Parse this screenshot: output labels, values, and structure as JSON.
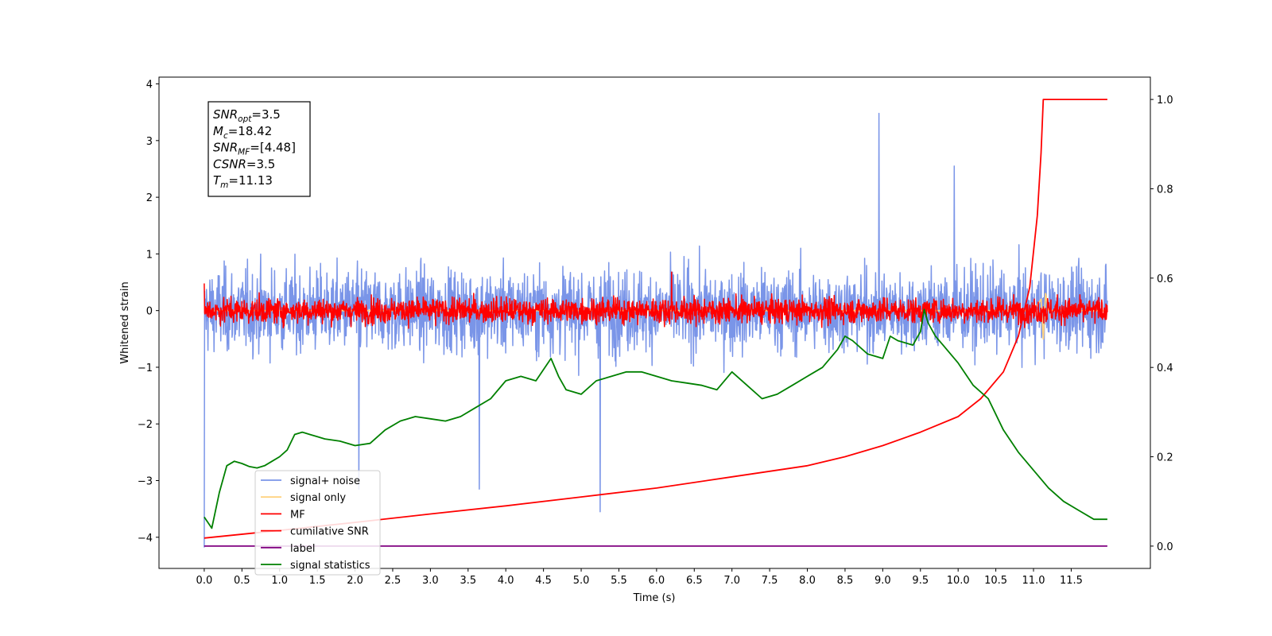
{
  "chart_data": {
    "type": "line",
    "xlabel": "Time (s)",
    "ylabel": "Whitened strain",
    "xlim": [
      -0.6,
      12.55
    ],
    "ylim": [
      -4.55,
      4.12
    ],
    "y2lim": [
      -0.05,
      1.05
    ],
    "x_ticks": [
      "0.0",
      "0.5",
      "1.0",
      "1.5",
      "2.0",
      "2.5",
      "3.0",
      "3.5",
      "4.0",
      "4.5",
      "5.0",
      "5.5",
      "6.0",
      "6.5",
      "7.0",
      "7.5",
      "8.0",
      "8.5",
      "9.0",
      "9.5",
      "10.0",
      "10.5",
      "11.0",
      "11.5"
    ],
    "y_ticks": [
      "4",
      "3",
      "2",
      "1",
      "0",
      "−1",
      "−2",
      "−3",
      "−4"
    ],
    "y2_ticks": [
      "1.0",
      "0.8",
      "0.6",
      "0.4",
      "0.2",
      "0.0"
    ],
    "grid": false,
    "legend_position": "lower-left",
    "annotation": [
      {
        "base": "SNR",
        "sub": "opt",
        "value": "=3.5"
      },
      {
        "base": "M",
        "sub": "c",
        "value": "=18.42"
      },
      {
        "base": "SNR",
        "sub": "MF",
        "value": "=[4.48]"
      },
      {
        "base": "CSNR",
        "sub": "",
        "value": "=3.5"
      },
      {
        "base": "T",
        "sub": "m",
        "value": "=11.13"
      }
    ],
    "series": [
      {
        "name": "signal+ noise",
        "color": "#7a95e8",
        "axis": "left",
        "kind": "noise",
        "x_range": [
          0.0,
          11.98
        ],
        "sigma": 0.72,
        "clip": [
          -2.95,
          2.75
        ],
        "spikes": [
          [
            5.25,
            -3.55
          ],
          [
            8.95,
            3.48
          ],
          [
            9.95,
            2.55
          ],
          [
            0.0,
            -4.18
          ],
          [
            2.05,
            -3.15
          ],
          [
            3.65,
            -3.15
          ]
        ]
      },
      {
        "name": "signal only",
        "color": "#ffd27f",
        "axis": "left",
        "x": [
          0.0,
          11.0,
          11.1,
          11.13,
          11.16,
          11.2,
          11.98
        ],
        "y": [
          0.0,
          0.0,
          0.2,
          -0.5,
          0.3,
          0.0,
          0.0
        ]
      },
      {
        "name": "MF",
        "color": "#ff0000",
        "axis": "left",
        "kind": "noise",
        "x_range": [
          0.0,
          11.98
        ],
        "sigma": 0.22,
        "clip": [
          -0.38,
          0.75
        ],
        "spikes": [
          [
            0.0,
            0.48
          ],
          [
            6.2,
            0.68
          ]
        ]
      },
      {
        "name": "cumilative SNR",
        "color": "#ff0000",
        "axis": "right",
        "x": [
          0.0,
          1.0,
          2.0,
          3.0,
          4.0,
          5.0,
          6.0,
          7.0,
          8.0,
          8.5,
          9.0,
          9.5,
          10.0,
          10.3,
          10.6,
          10.8,
          10.95,
          11.05,
          11.1,
          11.13,
          11.98
        ],
        "y": [
          0.018,
          0.035,
          0.053,
          0.072,
          0.09,
          0.11,
          0.13,
          0.155,
          0.18,
          0.2,
          0.225,
          0.255,
          0.29,
          0.33,
          0.39,
          0.47,
          0.58,
          0.74,
          0.88,
          1.0,
          1.0
        ]
      },
      {
        "name": "label",
        "color": "#800080",
        "axis": "right",
        "x": [
          0.0,
          11.98
        ],
        "y": [
          0.0,
          0.0
        ]
      },
      {
        "name": "signal statistics",
        "color": "#008000",
        "axis": "right",
        "x": [
          0.0,
          0.1,
          0.2,
          0.3,
          0.4,
          0.5,
          0.6,
          0.7,
          0.8,
          0.9,
          1.0,
          1.1,
          1.2,
          1.3,
          1.4,
          1.5,
          1.6,
          1.8,
          2.0,
          2.2,
          2.4,
          2.6,
          2.8,
          3.0,
          3.2,
          3.4,
          3.6,
          3.8,
          4.0,
          4.2,
          4.4,
          4.6,
          4.7,
          4.8,
          5.0,
          5.2,
          5.4,
          5.6,
          5.8,
          6.0,
          6.2,
          6.4,
          6.6,
          6.8,
          7.0,
          7.2,
          7.4,
          7.6,
          7.8,
          8.0,
          8.2,
          8.4,
          8.5,
          8.6,
          8.8,
          9.0,
          9.1,
          9.2,
          9.4,
          9.5,
          9.55,
          9.6,
          9.7,
          9.8,
          10.0,
          10.2,
          10.4,
          10.6,
          10.8,
          11.0,
          11.2,
          11.4,
          11.6,
          11.8,
          11.98
        ],
        "y": [
          0.065,
          0.04,
          0.12,
          0.18,
          0.19,
          0.185,
          0.178,
          0.175,
          0.18,
          0.19,
          0.2,
          0.215,
          0.25,
          0.255,
          0.25,
          0.245,
          0.24,
          0.235,
          0.225,
          0.23,
          0.26,
          0.28,
          0.29,
          0.285,
          0.28,
          0.29,
          0.31,
          0.33,
          0.37,
          0.38,
          0.37,
          0.42,
          0.38,
          0.35,
          0.34,
          0.37,
          0.38,
          0.39,
          0.39,
          0.38,
          0.37,
          0.365,
          0.36,
          0.35,
          0.39,
          0.36,
          0.33,
          0.34,
          0.36,
          0.38,
          0.4,
          0.44,
          0.47,
          0.46,
          0.43,
          0.42,
          0.47,
          0.46,
          0.45,
          0.48,
          0.53,
          0.5,
          0.47,
          0.45,
          0.41,
          0.36,
          0.33,
          0.26,
          0.21,
          0.17,
          0.13,
          0.1,
          0.08,
          0.06,
          0.06
        ]
      }
    ]
  }
}
